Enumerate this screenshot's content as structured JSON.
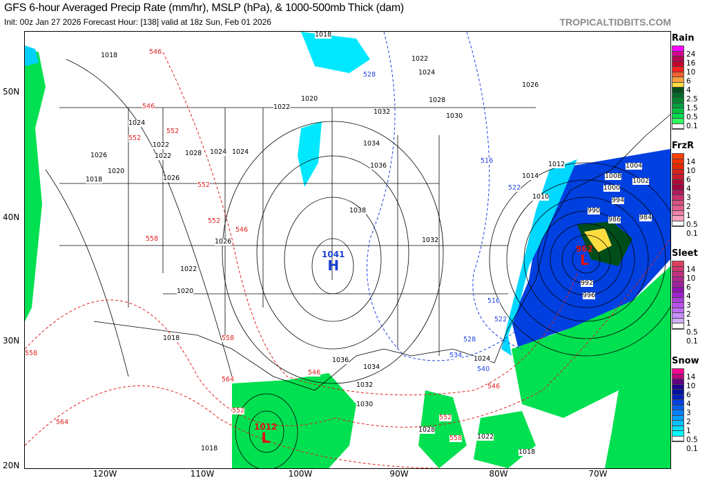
{
  "header": {
    "title": "GFS 6-hour Averaged Precip Rate (mm/hr), MSLP (hPa), & 1000-500mb Thick (dam)",
    "subtitle": "Init: 00z Jan 27 2026   Forecast Hour: [138]   valid at 18z Sun, Feb 01 2026",
    "brand": "TROPICALTIDBITS.COM"
  },
  "axes": {
    "lat": [
      "50N",
      "40N",
      "30N",
      "20N"
    ],
    "lon": [
      "120W",
      "110W",
      "100W",
      "90W",
      "80W",
      "70W"
    ]
  },
  "centers": [
    {
      "type": "H",
      "value": "1041",
      "color": "#1a3fd0"
    },
    {
      "type": "L",
      "value": "962",
      "color": "#e01010"
    },
    {
      "type": "L",
      "value": "1012",
      "color": "#e01010"
    }
  ],
  "isobar_labels": [
    "1018",
    "1022",
    "1024",
    "1020",
    "1026",
    "1028",
    "1024",
    "1022",
    "1018",
    "1026",
    "1024",
    "1022",
    "1020",
    "1018",
    "1018",
    "1022",
    "1024",
    "1026",
    "1028",
    "1030",
    "1032",
    "1034",
    "1036",
    "1038",
    "1032",
    "1026",
    "1022",
    "1020",
    "1018",
    "1014",
    "1012",
    "1010",
    "1008",
    "1004",
    "1000",
    "1002",
    "994",
    "990",
    "986",
    "984",
    "992",
    "996",
    "1036",
    "1034",
    "1032",
    "1030",
    "1028",
    "1024",
    "1022",
    "1018"
  ],
  "thickness_labels": [
    "546",
    "546",
    "552",
    "552",
    "552",
    "552",
    "546",
    "558",
    "558",
    "558",
    "564",
    "564",
    "546",
    "552",
    "558",
    "552",
    "546",
    "528",
    "516",
    "522",
    "516",
    "522",
    "528",
    "534",
    "540"
  ],
  "legend": [
    {
      "title": "Rain",
      "labels": [
        "24",
        "16",
        "10",
        "6",
        "4",
        "2.5",
        "1.5",
        "0.5",
        "0.1"
      ],
      "colors": [
        "#ff00ff",
        "#d40090",
        "#b80050",
        "#c8002a",
        "#ff2020",
        "#ff6030",
        "#ffa040",
        "#ffdd40",
        "#004d1a",
        "#006a25",
        "#008530",
        "#00a040",
        "#00c040",
        "#00e050",
        "#30ff60",
        "#ffffff"
      ]
    },
    {
      "title": "FrzR",
      "labels": [
        "14",
        "10",
        "6",
        "4",
        "3",
        "2",
        "1",
        "0.5",
        "0.1"
      ],
      "colors": [
        "#ff4000",
        "#ff3000",
        "#e82a00",
        "#d82020",
        "#c81a30",
        "#b00a3a",
        "#a00040",
        "#b01860",
        "#c83070",
        "#d85080",
        "#e06090",
        "#f080a8",
        "#f8a0c0",
        "#ffffff"
      ]
    },
    {
      "title": "Sleet",
      "labels": [
        "14",
        "10",
        "6",
        "4",
        "3",
        "2",
        "1",
        "0.5",
        "0.1"
      ],
      "colors": [
        "#e04060",
        "#d03870",
        "#c03080",
        "#b02890",
        "#a020a0",
        "#9010b0",
        "#a020d0",
        "#b040e0",
        "#b850f0",
        "#c070ff",
        "#c890ff",
        "#d0b0ff",
        "#ffffff"
      ]
    },
    {
      "title": "Snow",
      "labels": [
        "14",
        "10",
        "6",
        "4",
        "3",
        "2",
        "1",
        "0.5",
        "0.1"
      ],
      "colors": [
        "#ff0090",
        "#c00080",
        "#600080",
        "#200090",
        "#0010a0",
        "#0020c0",
        "#0040e0",
        "#0060f0",
        "#0080ff",
        "#00a0ff",
        "#00c0ff",
        "#00e0ff",
        "#00ffff",
        "#ffffff"
      ]
    }
  ]
}
